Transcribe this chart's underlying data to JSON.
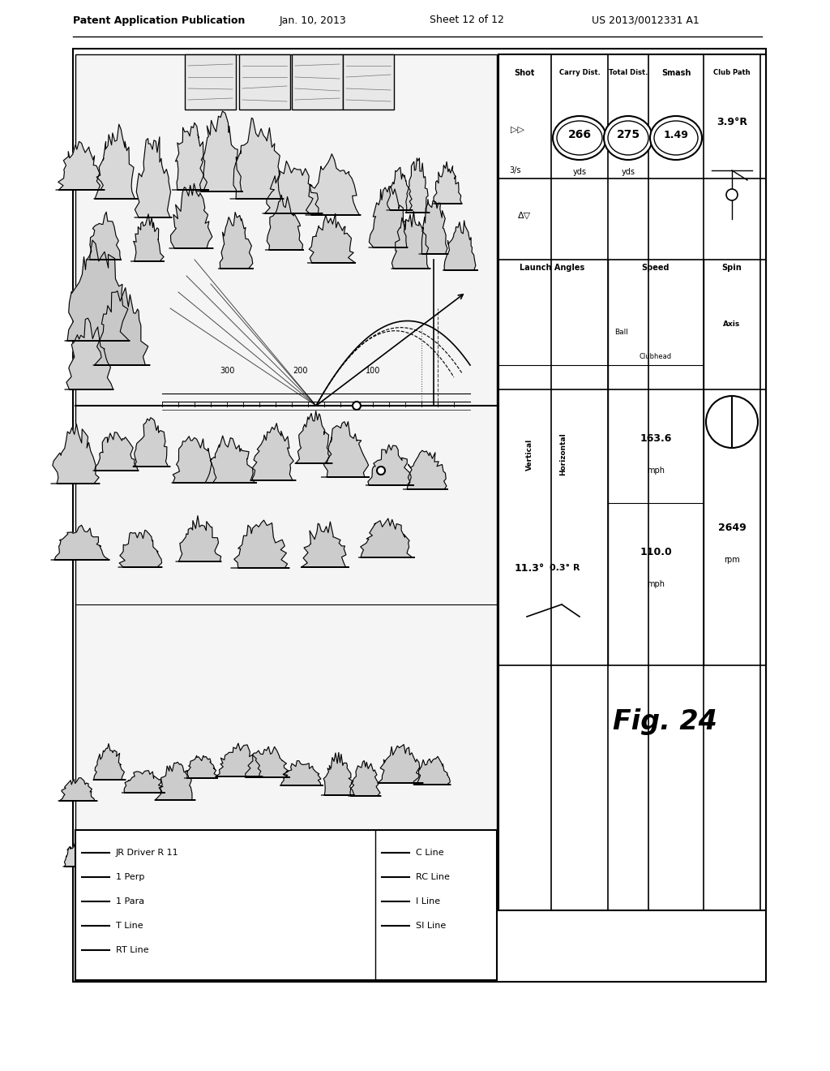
{
  "title": "Patent Application Publication",
  "date": "Jan. 10, 2013",
  "sheet": "Sheet 12 of 12",
  "patent_num": "US 2013/0012331 A1",
  "fig_label": "Fig. 24",
  "legend_items": [
    "JR Driver R 11",
    "1 Perp",
    "1 Para",
    "T Line",
    "RT Line",
    "C Line",
    "RC Line",
    "I Line",
    "SI Line"
  ],
  "data_panel": {
    "shot_label": "Shot",
    "carry_dist_label": "Carry Dist.",
    "carry_dist_val": "266",
    "carry_dist_unit": "yds",
    "total_dist_label": "Total Dist.",
    "total_dist_val": "275",
    "total_dist_unit": "yds",
    "smash_label": "Smash",
    "smash_val": "1.49",
    "club_path_label": "Club Path",
    "club_path_val": "3.9°R",
    "launch_angles_label": "Launch Angles",
    "vertical_label": "Vertical",
    "vertical_val": "11.3°",
    "horizontal_label": "Horizontal",
    "horizontal_val": "0.3° R",
    "speed_label": "Speed",
    "ball_label": "Ball",
    "ball_val": "163.6",
    "ball_unit": "mph",
    "clubhead_label": "Clubhead",
    "clubhead_val": "110.0",
    "clubhead_unit": "mph",
    "spin_label": "Spin",
    "spin_val": "2649",
    "spin_unit": "rpm",
    "axis_label": "Axis"
  },
  "bg_color": "#ffffff",
  "line_color": "#000000"
}
